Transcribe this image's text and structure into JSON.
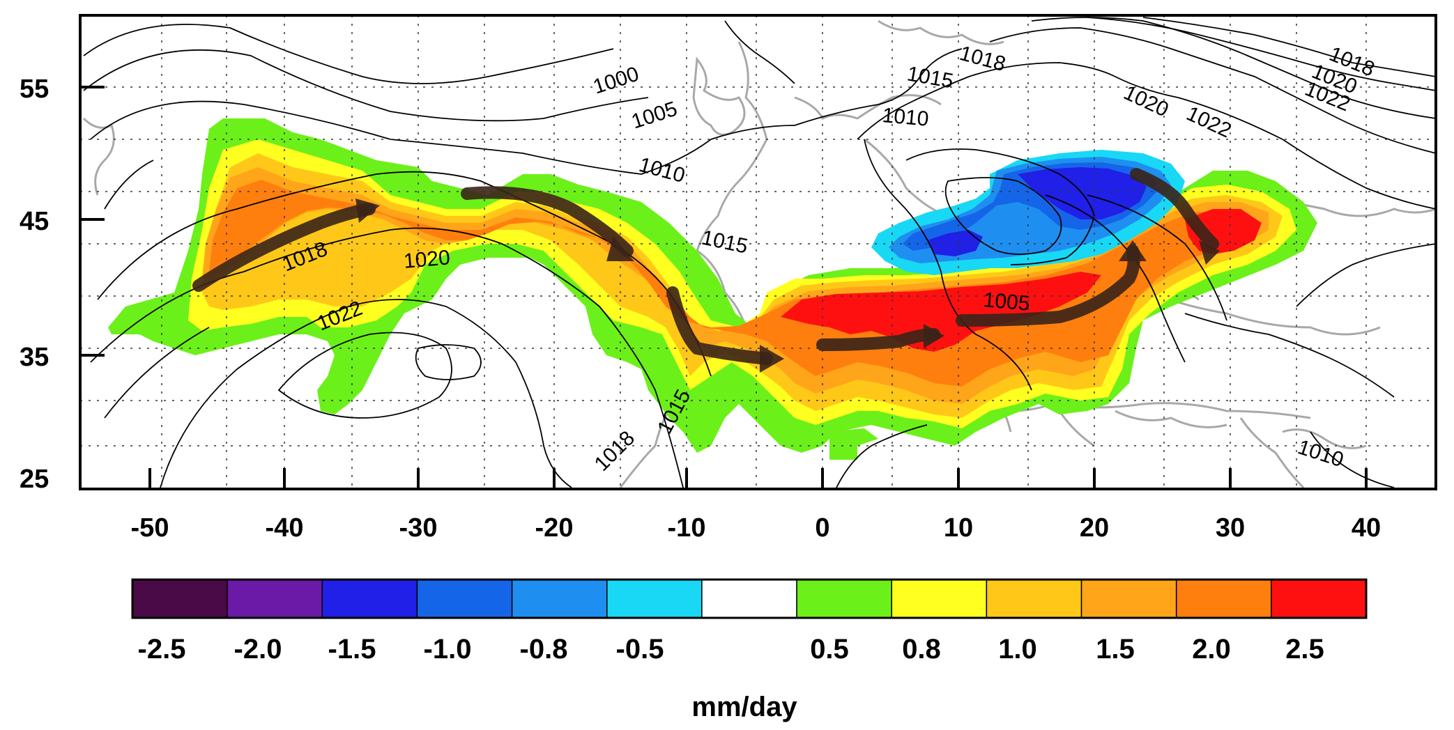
{
  "map": {
    "x_ticks": [
      "-50",
      "-40",
      "-30",
      "-20",
      "-10",
      "0",
      "10",
      "20",
      "30",
      "40"
    ],
    "y_ticks": [
      "55",
      "45",
      "35",
      "25"
    ],
    "contour_labels": [
      "1000",
      "1005",
      "1010",
      "1018",
      "1020",
      "1022",
      "1015",
      "1015",
      "1018",
      "1015",
      "1018",
      "1020",
      "1022",
      "1010",
      "1005",
      "1018",
      "1020",
      "1022",
      "1010"
    ]
  },
  "colorbar": {
    "colors": [
      "#4a0a47",
      "#6a1aa6",
      "#2020e8",
      "#1565e8",
      "#1e8ff0",
      "#18d8f5",
      "#ffffff",
      "#6cf01a",
      "#ffff20",
      "#ffc818",
      "#ffa51a",
      "#ff7f0e",
      "#ff1010"
    ],
    "labels": [
      "-2.5",
      "-2.0",
      "-1.5",
      "-1.0",
      "-0.8",
      "-0.5",
      "0.5",
      "0.8",
      "1.0",
      "1.5",
      "2.0",
      "2.5"
    ],
    "unit": "mm/day"
  }
}
